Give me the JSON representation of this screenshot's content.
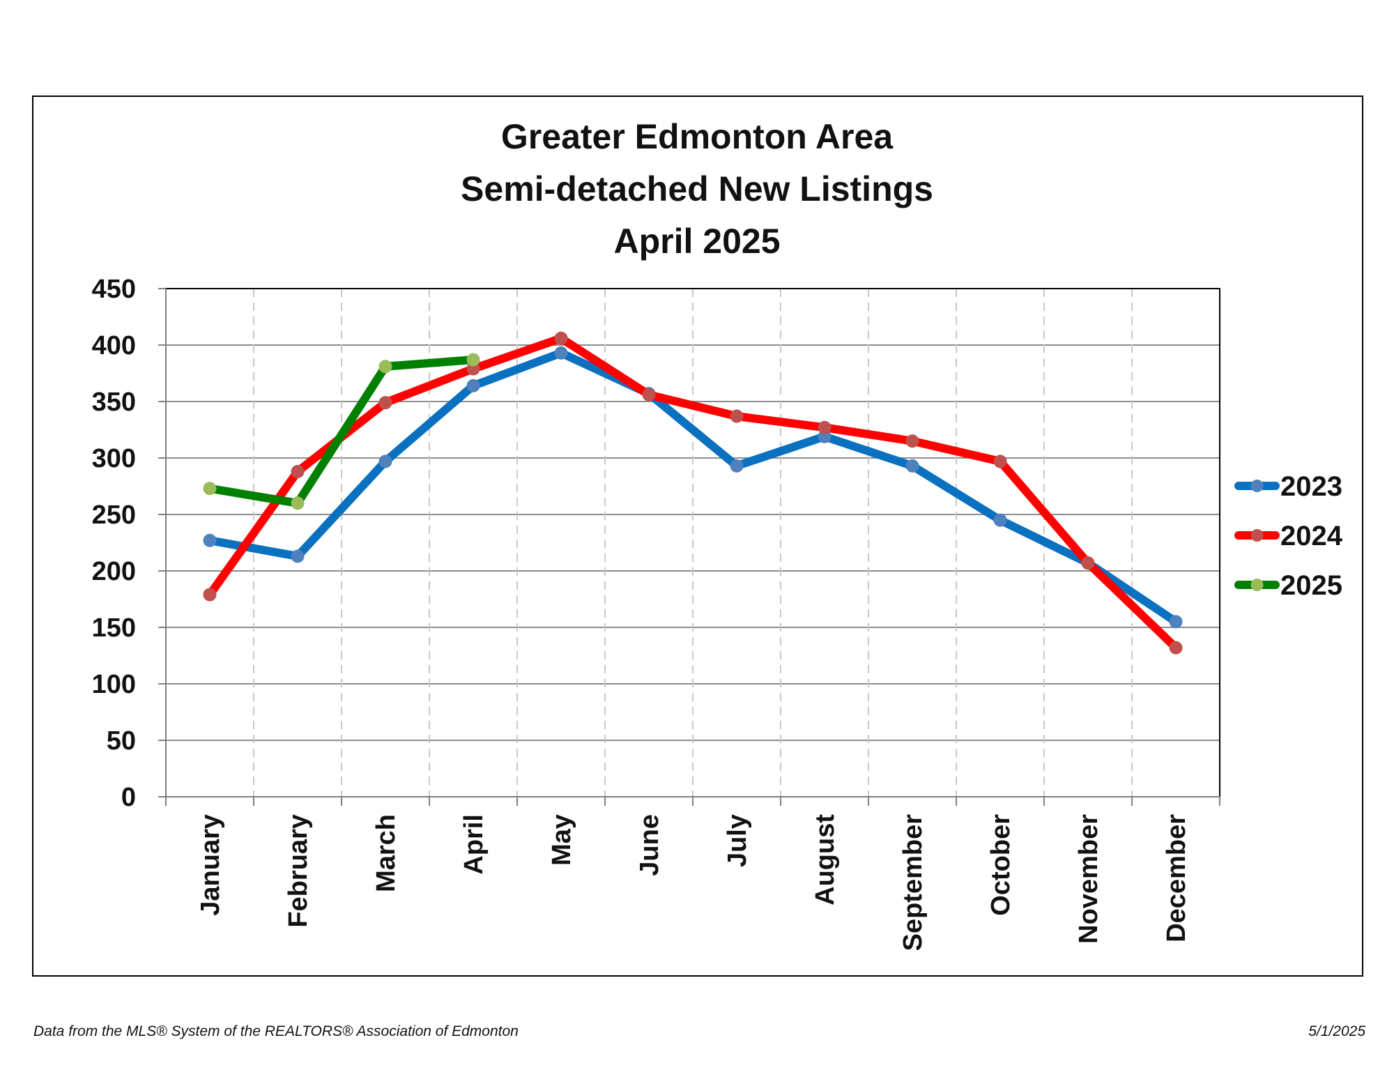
{
  "chart_data": {
    "type": "line",
    "title_lines": [
      "Greater Edmonton Area",
      "Semi-detached New Listings",
      "April 2025"
    ],
    "categories": [
      "January",
      "February",
      "March",
      "April",
      "May",
      "June",
      "July",
      "August",
      "September",
      "October",
      "November",
      "December"
    ],
    "ylim": [
      0,
      450
    ],
    "yticks": [
      0,
      50,
      100,
      150,
      200,
      250,
      300,
      350,
      400,
      450
    ],
    "grid": {
      "horizontal": "solid",
      "vertical": "dashed"
    },
    "legend_position": "right",
    "series": [
      {
        "name": "2023",
        "line_color": "#0a70c0",
        "marker_color": "#4f81bd",
        "values": [
          227,
          213,
          297,
          364,
          393,
          357,
          293,
          319,
          293,
          245,
          207,
          155
        ]
      },
      {
        "name": "2024",
        "line_color": "#ff0000",
        "marker_color": "#c0504d",
        "values": [
          179,
          288,
          349,
          379,
          406,
          356,
          337,
          327,
          315,
          297,
          207,
          132
        ]
      },
      {
        "name": "2025",
        "line_color": "#008000",
        "marker_color": "#9bbb59",
        "values": [
          273,
          260,
          381,
          387,
          null,
          null,
          null,
          null,
          null,
          null,
          null,
          null
        ]
      }
    ]
  },
  "footer": {
    "source": "Data from the MLS® System of the REALTORS® Association of Edmonton",
    "date": "5/1/2025"
  }
}
